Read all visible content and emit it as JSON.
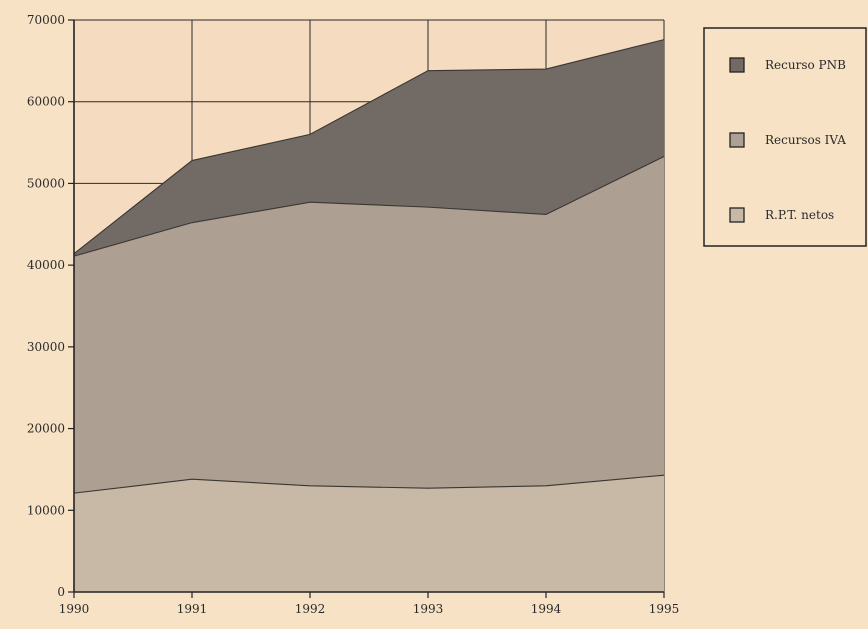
{
  "chart_data": {
    "type": "area",
    "stacked": true,
    "x": [
      "1990",
      "1991",
      "1992",
      "1993",
      "1994",
      "1995"
    ],
    "xlim": [
      1990,
      1995
    ],
    "ylim": [
      0,
      70000
    ],
    "yticks": [
      "0",
      "10000",
      "20000",
      "30000",
      "40000",
      "50000",
      "60000",
      "70000"
    ],
    "grid": true,
    "legend_position": "top-right",
    "background_color": "#f7e2c6",
    "series": [
      {
        "name": "R.P.T. netos",
        "values": [
          12100,
          13800,
          13000,
          12700,
          13000,
          14300
        ],
        "color": "#c8b9a6"
      },
      {
        "name": "Recursos IVA",
        "values": [
          29000,
          31400,
          34700,
          34400,
          33200,
          39000
        ],
        "color": "#ad9f91"
      },
      {
        "name": "Recurso PNB",
        "values": [
          300,
          7600,
          8300,
          16700,
          17800,
          14300
        ],
        "color": "#726b65"
      }
    ],
    "legend_order": [
      2,
      1,
      0
    ]
  }
}
